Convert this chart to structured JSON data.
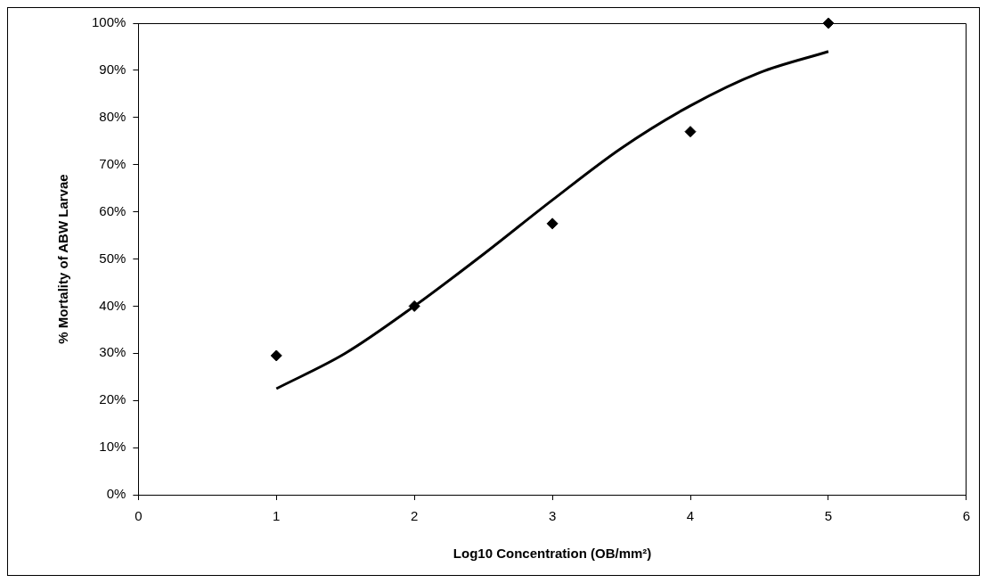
{
  "chart_data": {
    "type": "scatter",
    "xlabel": "Log10 Concentration (OB/mm²)",
    "ylabel": "% Mortality of ABW Larvae",
    "marker": "diamond",
    "legend": false,
    "grid": false,
    "series": [
      {
        "color": "#000000",
        "x": [
          1,
          2,
          3,
          4,
          5
        ],
        "values": [
          29.5,
          40,
          57.5,
          77,
          100
        ]
      },
      {
        "type": "line",
        "color": "#000000",
        "marker": "none",
        "x": [
          1,
          1.5,
          2,
          2.5,
          3,
          3.5,
          4,
          4.5,
          5
        ],
        "values": [
          22.5,
          30,
          40,
          51,
          62.5,
          73.5,
          82.5,
          89.5,
          94
        ]
      }
    ],
    "xlim": [
      0,
      6
    ],
    "xticks": [
      0,
      1,
      2,
      3,
      4,
      5,
      6
    ],
    "ylim": [
      0,
      100
    ],
    "yticks": [
      {
        "value": 0,
        "label": "0%"
      },
      {
        "value": 10,
        "label": "10%"
      },
      {
        "value": 20,
        "label": "20%"
      },
      {
        "value": 30,
        "label": "30%"
      },
      {
        "value": 40,
        "label": "40%"
      },
      {
        "value": 50,
        "label": "50%"
      },
      {
        "value": 60,
        "label": "60%"
      },
      {
        "value": 70,
        "label": "70%"
      },
      {
        "value": 80,
        "label": "80%"
      },
      {
        "value": 90,
        "label": "90%"
      },
      {
        "value": 100,
        "label": "100%"
      }
    ]
  }
}
